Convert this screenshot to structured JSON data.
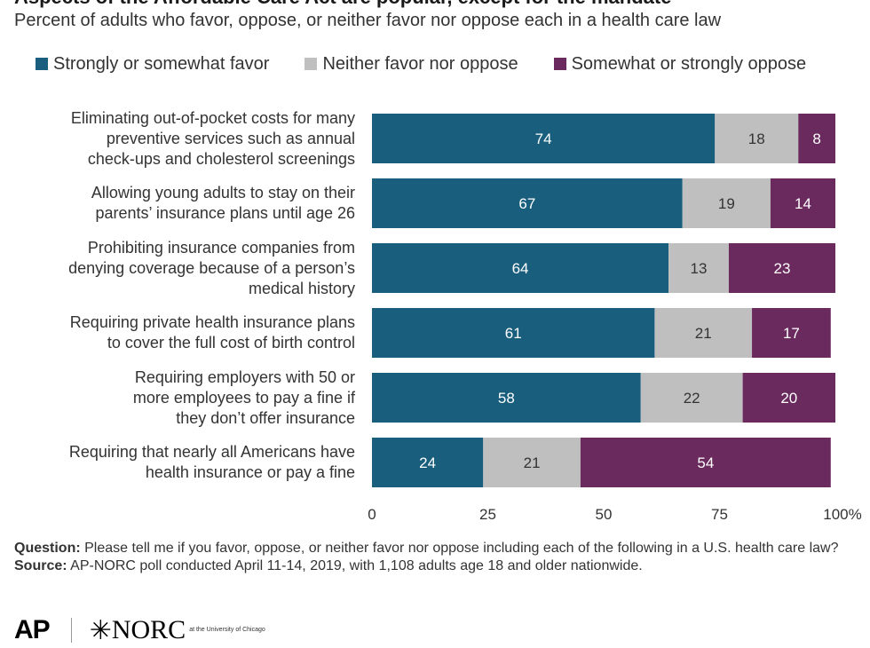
{
  "title": "Aspects of the Affordable Care Act are popular, except for the mandate",
  "subtitle": "Percent of adults who favor, oppose, or neither favor nor oppose each in a health care law",
  "colors": {
    "favor": "#1a5e7e",
    "neither": "#bfbfbf",
    "oppose": "#6a2a5e"
  },
  "chart_data": {
    "type": "bar",
    "orientation": "horizontal",
    "stacked": true,
    "categories": [
      "Eliminating out-of-pocket costs for many preventive services such as annual check-ups and cholesterol screenings",
      "Allowing young adults to stay on their parents’ insurance plans until age 26",
      "Prohibiting insurance companies from denying coverage because of a person’s medical history",
      "Requiring private health insurance plans to cover the full cost of birth control",
      "Requiring employers with 50 or more employees to pay a fine if they don’t offer insurance",
      "Requiring that nearly all Americans have health insurance or pay a fine"
    ],
    "category_lines": [
      [
        "Eliminating out-of-pocket costs for many",
        "preventive services such as annual",
        "check-ups and cholesterol screenings"
      ],
      [
        "Allowing young adults to stay on their",
        "parents’ insurance plans until age 26"
      ],
      [
        "Prohibiting insurance companies from",
        "denying coverage because of a person’s",
        "medical history"
      ],
      [
        "Requiring private health insurance plans",
        "to cover the full cost of birth control"
      ],
      [
        "Requiring employers with 50 or",
        "more employees to pay a fine if",
        "they don’t offer insurance"
      ],
      [
        "Requiring that nearly all Americans have",
        "health insurance or pay a fine"
      ]
    ],
    "series": [
      {
        "name": "Strongly or somewhat favor",
        "values": [
          74,
          67,
          64,
          61,
          58,
          24
        ]
      },
      {
        "name": "Neither favor nor oppose",
        "values": [
          18,
          19,
          13,
          21,
          22,
          21
        ]
      },
      {
        "name": "Somewhat or strongly oppose",
        "values": [
          8,
          14,
          23,
          17,
          20,
          54
        ]
      }
    ],
    "xlim": [
      0,
      100
    ],
    "xticks": [
      "0",
      "25",
      "50",
      "75",
      "100%"
    ],
    "xtick_values": [
      0,
      25,
      50,
      75,
      100
    ],
    "legend": "top"
  },
  "footer": {
    "question_label": "Question:",
    "question_text": " Please tell me if you favor, oppose, or neither favor nor oppose including each of the following in a U.S. health care law?",
    "source_label": "Source:",
    "source_text": " AP-NORC poll conducted April 11-14, 2019, with 1,108 adults age 18 and older nationwide."
  },
  "logos": {
    "ap": "AP",
    "norc": "NORC",
    "norc_small": "at the University of Chicago"
  }
}
